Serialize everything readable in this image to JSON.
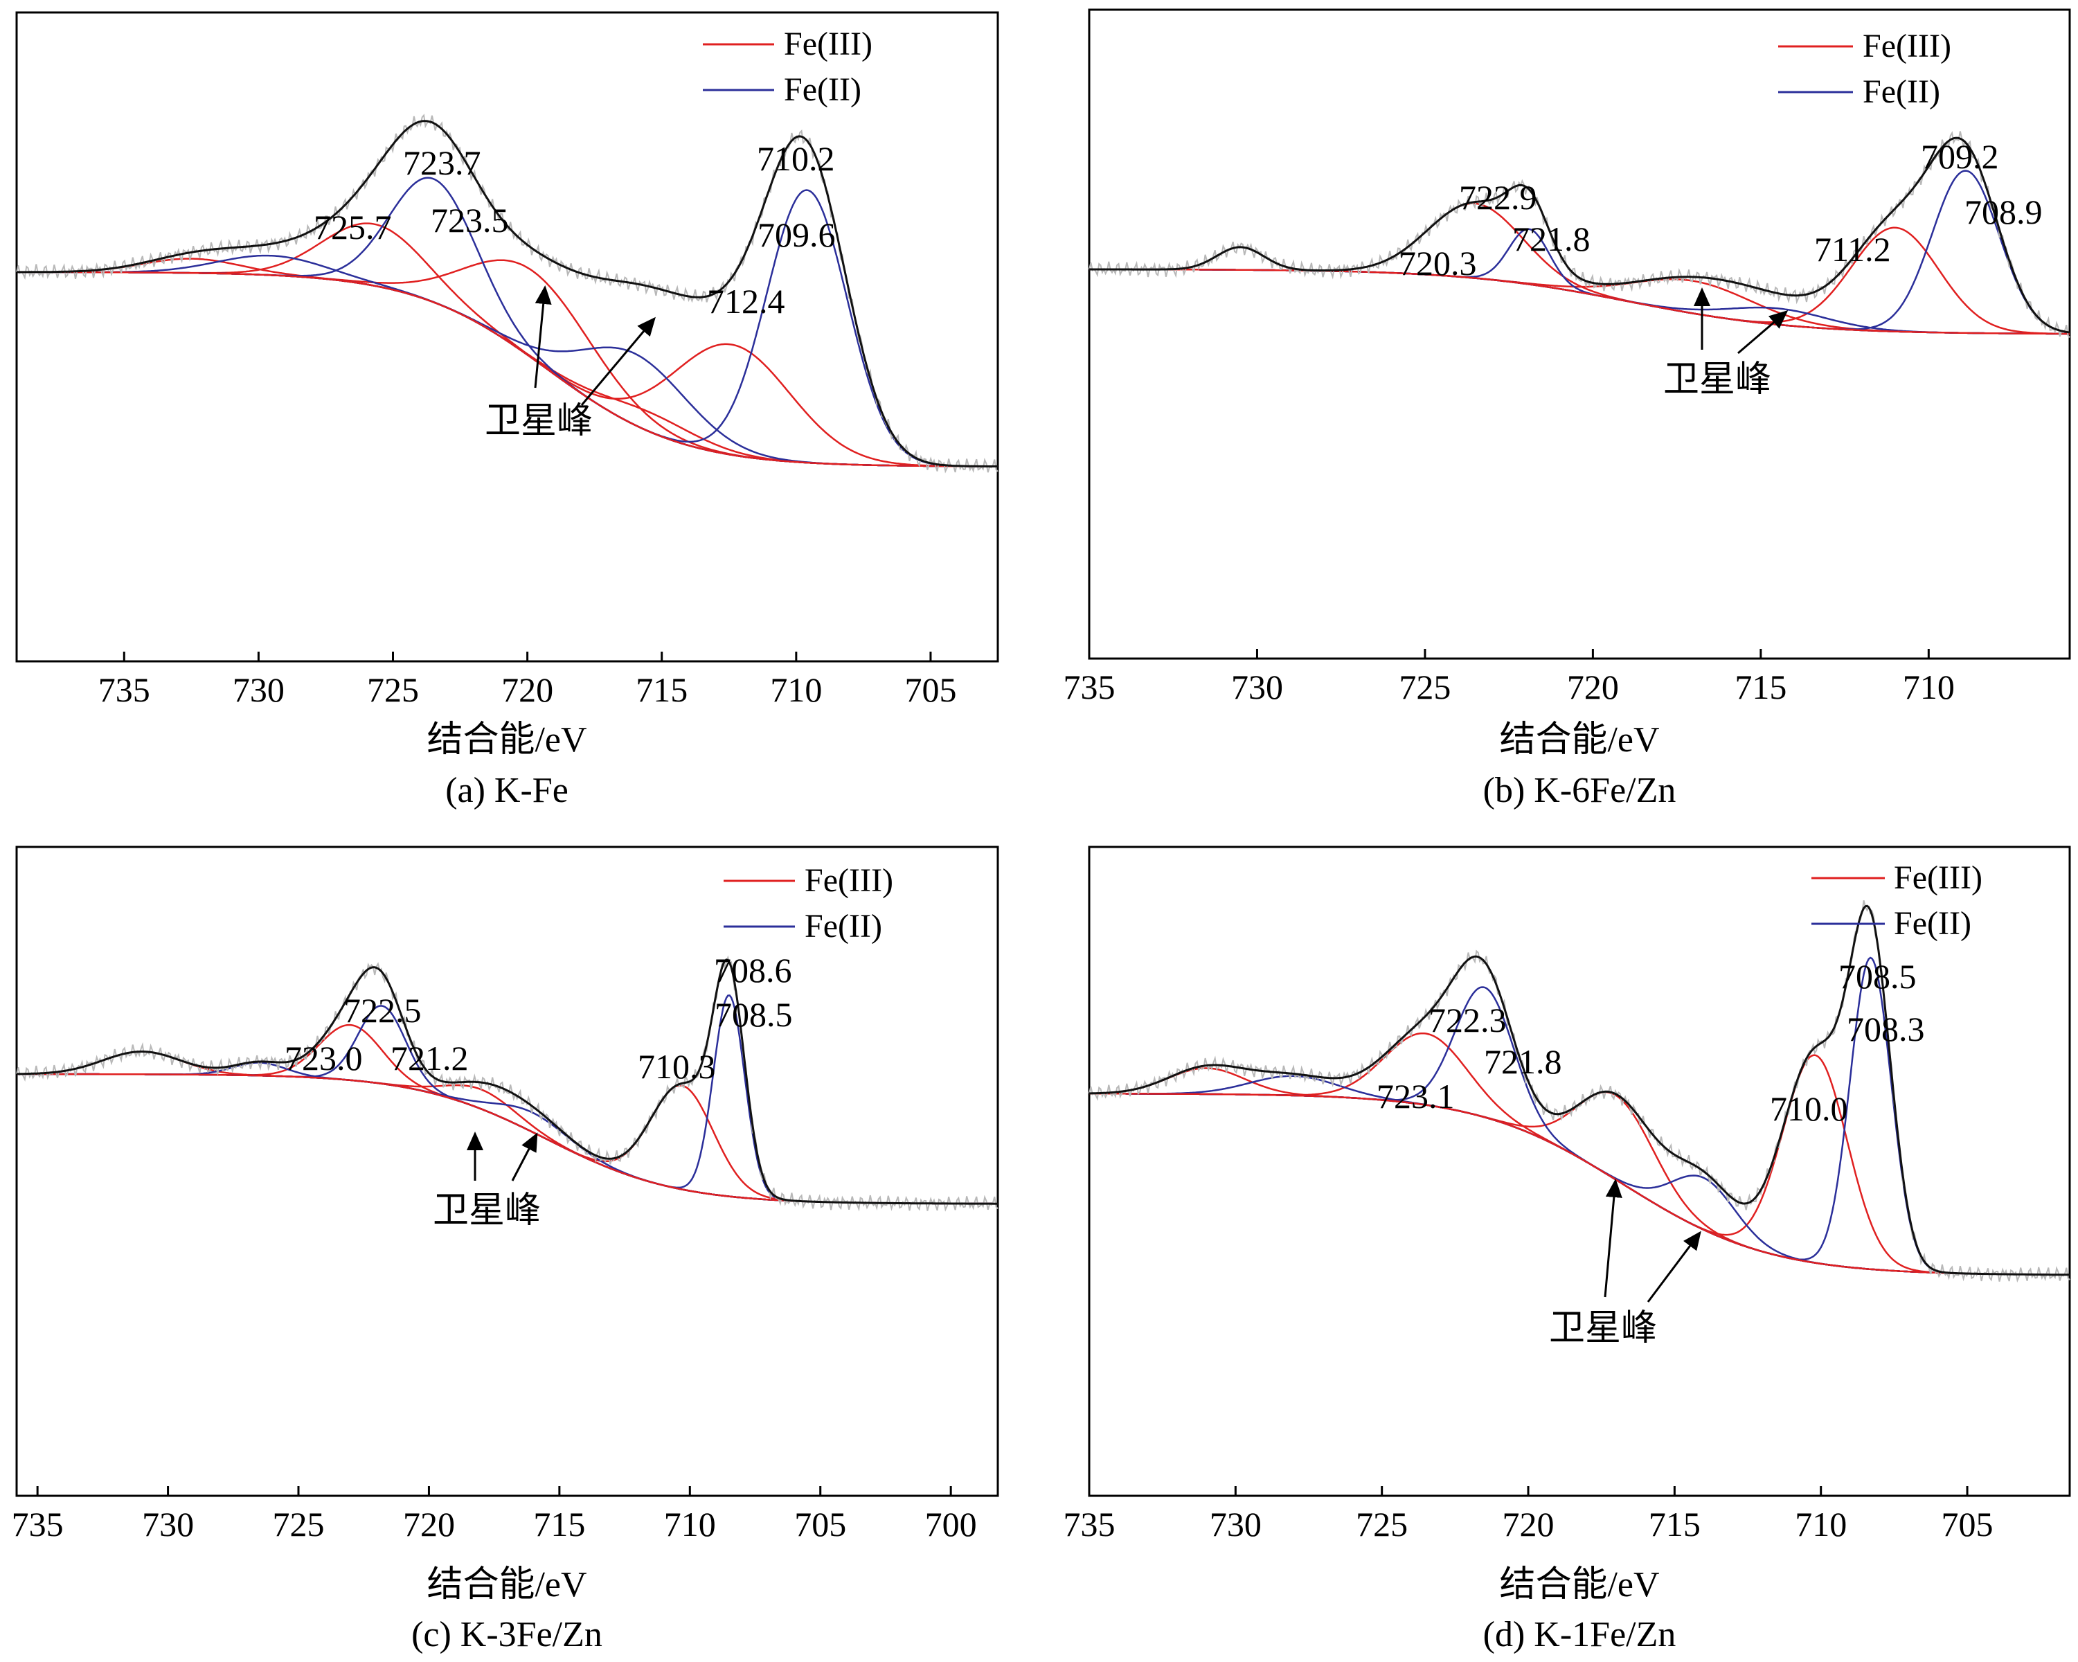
{
  "legend_labels": {
    "fe3": "Fe(III)",
    "fe2": "Fe(II)"
  },
  "colors": {
    "fe3": "#e02020",
    "fe2": "#2b2f9a",
    "envelope": "#111111",
    "raw": "#b8b8b8",
    "axis": "#000000"
  },
  "xlabel": "结合能/eV",
  "satellite_label": "卫星峰",
  "chart_data": [
    {
      "type": "line",
      "caption": "(a) K-Fe",
      "xlabel": "结合能/eV",
      "ylabel": "",
      "x_reversed": true,
      "xlim": [
        739,
        702.5
      ],
      "ylim": [
        0,
        100
      ],
      "xticks": [
        735,
        730,
        725,
        720,
        715,
        710,
        705
      ],
      "baseline": {
        "left": 60,
        "right": 30
      },
      "legend_position": "top-right",
      "fe3_peaks": [
        {
          "center": 732.5,
          "height": 2.2,
          "width": 1.8
        },
        {
          "center": 725.7,
          "height": 9.5,
          "width": 1.9
        },
        {
          "center": 719.8,
          "height": 13.5,
          "width": 2.3
        },
        {
          "center": 712.4,
          "height": 17.0,
          "width": 2.2
        },
        {
          "center": 715.5,
          "height": 3.0,
          "width": 1.8
        }
      ],
      "fe2_peaks": [
        {
          "center": 729.5,
          "height": 3.0,
          "width": 2.0
        },
        {
          "center": 723.5,
          "height": 19.0,
          "width": 1.6
        },
        {
          "center": 716.0,
          "height": 11.0,
          "width": 2.0
        },
        {
          "center": 709.6,
          "height": 42.0,
          "width": 1.5
        }
      ],
      "peak_labels": [
        "723.7",
        "725.7",
        "723.5",
        "710.2",
        "709.6",
        "712.4"
      ],
      "annotations": [
        "卫星峰"
      ]
    },
    {
      "type": "line",
      "caption": "(b) K-6Fe/Zn",
      "xlabel": "结合能/eV",
      "ylabel": "",
      "x_reversed": true,
      "xlim": [
        735,
        705.8
      ],
      "ylim": [
        0,
        100
      ],
      "xticks": [
        735,
        730,
        725,
        720,
        715,
        710
      ],
      "baseline": {
        "left": 60,
        "right": 50
      },
      "legend_position": "top-right",
      "fe3_peaks": [
        {
          "center": 723.5,
          "height": 11.5,
          "width": 1.4
        },
        {
          "center": 717.0,
          "height": 5.0,
          "width": 1.8
        },
        {
          "center": 711.0,
          "height": 16.0,
          "width": 1.3
        }
      ],
      "fe2_peaks": [
        {
          "center": 730.5,
          "height": 3.5,
          "width": 0.7
        },
        {
          "center": 721.9,
          "height": 8.5,
          "width": 0.6
        },
        {
          "center": 714.5,
          "height": 2.5,
          "width": 1.5
        },
        {
          "center": 708.9,
          "height": 25.0,
          "width": 1.0
        }
      ],
      "peak_labels": [
        "722.9",
        "720.3",
        "721.8",
        "709.2",
        "708.9",
        "711.2"
      ],
      "annotations": [
        "卫星峰"
      ]
    },
    {
      "type": "line",
      "caption": "(c) K-3Fe/Zn",
      "xlabel": "结合能/eV",
      "ylabel": "",
      "x_reversed": true,
      "xlim": [
        735.8,
        698.2
      ],
      "ylim": [
        0,
        100
      ],
      "xticks": [
        735,
        730,
        725,
        720,
        715,
        710,
        705,
        700
      ],
      "baseline": {
        "left": 65,
        "right": 45
      },
      "legend_position": "top-right",
      "fe3_peaks": [
        {
          "center": 731.0,
          "height": 3.5,
          "width": 1.5
        },
        {
          "center": 723.0,
          "height": 8.5,
          "width": 1.2
        },
        {
          "center": 718.0,
          "height": 3.0,
          "width": 1.3
        },
        {
          "center": 710.3,
          "height": 16.0,
          "width": 1.2
        }
      ],
      "fe2_peaks": [
        {
          "center": 726.5,
          "height": 2.0,
          "width": 1.0
        },
        {
          "center": 721.8,
          "height": 12.0,
          "width": 0.9
        },
        {
          "center": 716.0,
          "height": 3.0,
          "width": 1.4
        },
        {
          "center": 708.5,
          "height": 31.0,
          "width": 0.6
        }
      ],
      "peak_labels": [
        "722.5",
        "723.0",
        "721.2",
        "708.6",
        "708.5",
        "710.3"
      ],
      "annotations": [
        "卫星峰"
      ]
    },
    {
      "type": "line",
      "caption": "(d) K-1Fe/Zn",
      "xlabel": "结合能/eV",
      "ylabel": "",
      "x_reversed": true,
      "xlim": [
        735,
        701.5
      ],
      "ylim": [
        0,
        100
      ],
      "xticks": [
        735,
        730,
        725,
        720,
        715,
        710,
        705
      ],
      "baseline": {
        "left": 62,
        "right": 34
      },
      "legend_position": "top-right",
      "fe3_peaks": [
        {
          "center": 731.0,
          "height": 4.0,
          "width": 1.3
        },
        {
          "center": 723.5,
          "height": 11.0,
          "width": 1.4
        },
        {
          "center": 717.0,
          "height": 13.0,
          "width": 1.3
        },
        {
          "center": 710.2,
          "height": 32.0,
          "width": 1.1
        }
      ],
      "fe2_peaks": [
        {
          "center": 728.0,
          "height": 3.0,
          "width": 1.5
        },
        {
          "center": 721.5,
          "height": 20.0,
          "width": 1.0
        },
        {
          "center": 714.0,
          "height": 8.0,
          "width": 1.1
        },
        {
          "center": 708.3,
          "height": 48.0,
          "width": 0.7
        }
      ],
      "peak_labels": [
        "722.3",
        "723.1",
        "721.8",
        "708.5",
        "708.3",
        "710.0"
      ],
      "annotations": [
        "卫星峰"
      ]
    }
  ]
}
